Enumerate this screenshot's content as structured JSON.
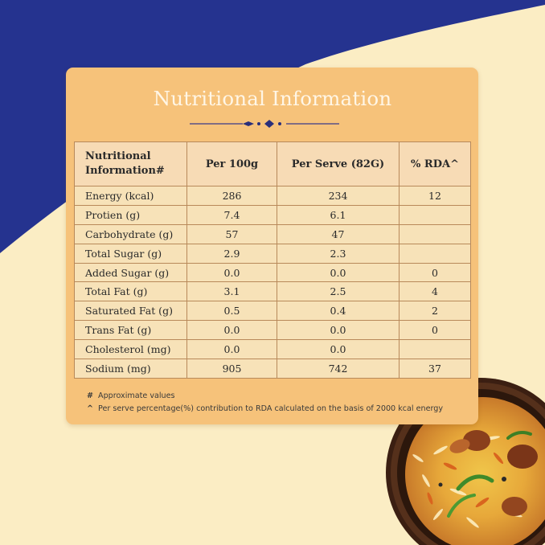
{
  "title": "Nutritional Information",
  "colors": {
    "blue": "#25338f",
    "cream": "#fbedc4",
    "card": "#f6c27a",
    "table": "#f7e2b8",
    "border": "#b8895a"
  },
  "table": {
    "headers": [
      "Nutritional Information#",
      "Per 100g",
      "Per Serve (82G)",
      "% RDA^"
    ],
    "rows": [
      {
        "label": "Energy (kcal)",
        "per100": "286",
        "perServe": "234",
        "rda": "12"
      },
      {
        "label": "Protien (g)",
        "per100": "7.4",
        "perServe": "6.1",
        "rda": ""
      },
      {
        "label": "Carbohydrate (g)",
        "per100": "57",
        "perServe": "47",
        "rda": ""
      },
      {
        "label": "Total Sugar (g)",
        "per100": "2.9",
        "perServe": "2.3",
        "rda": ""
      },
      {
        "label": "Added Sugar (g)",
        "per100": "0.0",
        "perServe": "0.0",
        "rda": "0"
      },
      {
        "label": "Total Fat (g)",
        "per100": "3.1",
        "perServe": "2.5",
        "rda": "4"
      },
      {
        "label": "Saturated Fat (g)",
        "per100": "0.5",
        "perServe": "0.4",
        "rda": "2"
      },
      {
        "label": "Trans Fat (g)",
        "per100": "0.0",
        "perServe": "0.0",
        "rda": "0"
      },
      {
        "label": "Cholesterol (mg)",
        "per100": "0.0",
        "perServe": "0.0",
        "rda": ""
      },
      {
        "label": "Sodium (mg)",
        "per100": "905",
        "perServe": "742",
        "rda": "37"
      }
    ]
  },
  "footnotes": [
    {
      "symbol": "#",
      "text": "Approximate values"
    },
    {
      "symbol": "^",
      "text": "Per serve percentage(%) contribution to RDA calculated on the basis of 2000 kcal energy"
    }
  ],
  "image": {
    "subject": "biryani-bowl"
  }
}
